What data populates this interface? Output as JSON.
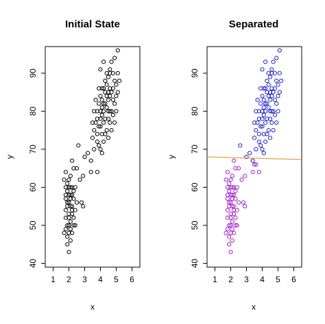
{
  "chart_data": [
    {
      "type": "scatter",
      "title": "Initial State",
      "xlabel": "x",
      "ylabel": "y",
      "xlim": [
        0.5,
        6.5
      ],
      "ylim": [
        39,
        97
      ],
      "xticks": [
        1,
        2,
        3,
        4,
        5,
        6
      ],
      "yticks": [
        40,
        50,
        60,
        70,
        80,
        90
      ],
      "grid": false,
      "series": [
        {
          "color": "#000000",
          "points": [
            [
              1.8,
              54
            ],
            [
              1.9,
              55
            ],
            [
              2.0,
              53
            ],
            [
              1.8,
              57
            ],
            [
              1.9,
              59
            ],
            [
              2.0,
              60
            ],
            [
              2.1,
              58
            ],
            [
              1.7,
              62
            ],
            [
              1.8,
              52
            ],
            [
              1.9,
              50
            ],
            [
              2.0,
              48
            ],
            [
              2.1,
              46
            ],
            [
              1.9,
              45
            ],
            [
              2.0,
              43
            ],
            [
              2.2,
              55
            ],
            [
              2.3,
              57
            ],
            [
              1.7,
              48
            ],
            [
              2.1,
              51
            ],
            [
              2.2,
              53
            ],
            [
              2.3,
              52
            ],
            [
              2.4,
              54
            ],
            [
              2.5,
              56
            ],
            [
              1.8,
              64
            ],
            [
              2.0,
              62
            ],
            [
              2.1,
              63
            ],
            [
              2.3,
              65
            ],
            [
              2.5,
              65
            ],
            [
              2.7,
              62
            ],
            [
              2.9,
              63
            ],
            [
              2.2,
              67
            ],
            [
              2.8,
              56
            ],
            [
              2.9,
              55
            ],
            [
              2.4,
              50
            ],
            [
              2.2,
              48
            ],
            [
              1.8,
              49
            ],
            [
              1.9,
              47
            ],
            [
              2.0,
              52
            ],
            [
              2.1,
              55
            ],
            [
              2.2,
              58
            ],
            [
              1.8,
              60
            ],
            [
              2.0,
              56
            ],
            [
              2.2,
              60
            ],
            [
              2.3,
              59
            ],
            [
              1.9,
              61
            ],
            [
              2.1,
              60
            ],
            [
              2.0,
              58
            ],
            [
              2.1,
              57
            ],
            [
              2.2,
              54
            ],
            [
              2.3,
              50
            ],
            [
              2.1,
              49
            ],
            [
              1.9,
              56
            ],
            [
              1.8,
              58
            ],
            [
              2.0,
              50
            ],
            [
              2.4,
              60
            ],
            [
              3.0,
              68
            ],
            [
              3.2,
              69
            ],
            [
              3.4,
              67
            ],
            [
              3.6,
              70
            ],
            [
              3.8,
              72
            ],
            [
              4.0,
              70
            ],
            [
              4.1,
              69
            ],
            [
              2.6,
              71
            ],
            [
              3.5,
              73
            ],
            [
              3.6,
              75
            ],
            [
              3.7,
              77
            ],
            [
              3.8,
              74
            ],
            [
              3.9,
              76
            ],
            [
              4.0,
              78
            ],
            [
              4.1,
              79
            ],
            [
              4.2,
              80
            ],
            [
              4.3,
              82
            ],
            [
              4.4,
              81
            ],
            [
              4.5,
              83
            ],
            [
              4.6,
              84
            ],
            [
              4.7,
              85
            ],
            [
              4.8,
              86
            ],
            [
              4.9,
              88
            ],
            [
              5.0,
              87
            ],
            [
              5.1,
              90
            ],
            [
              3.8,
              80
            ],
            [
              3.9,
              82
            ],
            [
              4.0,
              84
            ],
            [
              4.1,
              83
            ],
            [
              4.2,
              86
            ],
            [
              4.3,
              88
            ],
            [
              4.4,
              90
            ],
            [
              4.5,
              89
            ],
            [
              4.6,
              91
            ],
            [
              4.7,
              93
            ],
            [
              4.9,
              94
            ],
            [
              5.1,
              96
            ],
            [
              4.2,
              93
            ],
            [
              4.0,
              91
            ],
            [
              3.9,
              86
            ],
            [
              3.7,
              83
            ],
            [
              3.6,
              80
            ],
            [
              3.8,
              78
            ],
            [
              4.0,
              76
            ],
            [
              4.2,
              77
            ],
            [
              4.4,
              75
            ],
            [
              4.5,
              78
            ],
            [
              4.6,
              77
            ],
            [
              4.8,
              79
            ],
            [
              5.0,
              80
            ],
            [
              4.9,
              82
            ],
            [
              4.7,
              80
            ],
            [
              4.5,
              80
            ],
            [
              4.3,
              78
            ],
            [
              4.1,
              81
            ],
            [
              4.4,
              84
            ],
            [
              4.6,
              86
            ],
            [
              4.8,
              83
            ],
            [
              5.0,
              84
            ],
            [
              4.3,
              74
            ],
            [
              4.5,
              73
            ],
            [
              4.7,
              75
            ],
            [
              4.2,
              72
            ],
            [
              4.9,
              77
            ],
            [
              5.1,
              85
            ],
            [
              5.2,
              88
            ],
            [
              4.3,
              85
            ],
            [
              4.4,
              87
            ],
            [
              4.6,
              80
            ],
            [
              4.0,
              80
            ],
            [
              4.2,
              82
            ],
            [
              4.5,
              85
            ],
            [
              4.8,
              90
            ],
            [
              3.9,
              71
            ],
            [
              4.1,
              74
            ],
            [
              3.5,
              77
            ],
            [
              3.4,
              64
            ],
            [
              3.8,
              64
            ],
            [
              4.6,
              90
            ],
            [
              4.1,
              86
            ]
          ]
        }
      ]
    },
    {
      "type": "scatter",
      "title": "Separated",
      "xlabel": "x",
      "ylabel": "y",
      "xlim": [
        0.5,
        6.5
      ],
      "ylim": [
        39,
        97
      ],
      "xticks": [
        1,
        2,
        3,
        4,
        5,
        6
      ],
      "yticks": [
        40,
        50,
        60,
        70,
        80,
        90
      ],
      "grid": false,
      "separator": {
        "x": [
          0.5,
          6.5
        ],
        "y": [
          68.0,
          67.3
        ],
        "color": "#e8a33d"
      },
      "series": [
        {
          "color": "#a020c8",
          "points": [
            [
              1.8,
              54
            ],
            [
              1.9,
              55
            ],
            [
              2.0,
              53
            ],
            [
              1.8,
              57
            ],
            [
              1.9,
              59
            ],
            [
              2.0,
              60
            ],
            [
              2.1,
              58
            ],
            [
              1.7,
              62
            ],
            [
              1.8,
              52
            ],
            [
              1.9,
              50
            ],
            [
              2.0,
              48
            ],
            [
              2.1,
              46
            ],
            [
              1.9,
              45
            ],
            [
              2.0,
              43
            ],
            [
              2.2,
              55
            ],
            [
              2.3,
              57
            ],
            [
              1.7,
              48
            ],
            [
              2.1,
              51
            ],
            [
              2.2,
              53
            ],
            [
              2.3,
              52
            ],
            [
              2.4,
              54
            ],
            [
              2.5,
              56
            ],
            [
              1.8,
              64
            ],
            [
              2.0,
              62
            ],
            [
              2.1,
              63
            ],
            [
              2.3,
              65
            ],
            [
              2.5,
              65
            ],
            [
              2.7,
              62
            ],
            [
              2.9,
              63
            ],
            [
              2.2,
              67
            ],
            [
              2.8,
              56
            ],
            [
              2.9,
              55
            ],
            [
              2.4,
              50
            ],
            [
              2.2,
              48
            ],
            [
              1.8,
              49
            ],
            [
              1.9,
              47
            ],
            [
              2.0,
              52
            ],
            [
              2.1,
              55
            ],
            [
              2.2,
              58
            ],
            [
              1.8,
              60
            ],
            [
              2.0,
              56
            ],
            [
              2.2,
              60
            ],
            [
              2.3,
              59
            ],
            [
              1.9,
              61
            ],
            [
              2.1,
              60
            ],
            [
              2.0,
              58
            ],
            [
              2.1,
              57
            ],
            [
              2.2,
              54
            ],
            [
              2.3,
              50
            ],
            [
              2.1,
              49
            ],
            [
              1.9,
              56
            ],
            [
              1.8,
              58
            ],
            [
              2.0,
              50
            ],
            [
              2.4,
              60
            ],
            [
              3.4,
              64
            ],
            [
              3.8,
              64
            ],
            [
              3.5,
              66
            ],
            [
              3.6,
              66
            ]
          ]
        },
        {
          "color": "#1f1fc8",
          "points": [
            [
              3.0,
              68
            ],
            [
              3.2,
              69
            ],
            [
              3.4,
              67
            ],
            [
              3.6,
              70
            ],
            [
              3.8,
              72
            ],
            [
              4.0,
              70
            ],
            [
              4.1,
              69
            ],
            [
              2.6,
              71
            ],
            [
              3.5,
              73
            ],
            [
              3.6,
              75
            ],
            [
              3.7,
              77
            ],
            [
              3.8,
              74
            ],
            [
              3.9,
              76
            ],
            [
              4.0,
              78
            ],
            [
              4.1,
              79
            ],
            [
              4.2,
              80
            ],
            [
              4.3,
              82
            ],
            [
              4.4,
              81
            ],
            [
              4.5,
              83
            ],
            [
              4.6,
              84
            ],
            [
              4.7,
              85
            ],
            [
              4.8,
              86
            ],
            [
              4.9,
              88
            ],
            [
              5.0,
              87
            ],
            [
              5.1,
              90
            ],
            [
              3.8,
              80
            ],
            [
              3.9,
              82
            ],
            [
              4.0,
              84
            ],
            [
              4.1,
              83
            ],
            [
              4.2,
              86
            ],
            [
              4.3,
              88
            ],
            [
              4.4,
              90
            ],
            [
              4.5,
              89
            ],
            [
              4.6,
              91
            ],
            [
              4.7,
              93
            ],
            [
              4.9,
              94
            ],
            [
              5.1,
              96
            ],
            [
              4.2,
              93
            ],
            [
              4.0,
              91
            ],
            [
              3.9,
              86
            ],
            [
              3.7,
              83
            ],
            [
              3.6,
              80
            ],
            [
              3.8,
              78
            ],
            [
              4.0,
              76
            ],
            [
              4.2,
              77
            ],
            [
              4.4,
              75
            ],
            [
              4.5,
              78
            ],
            [
              4.6,
              77
            ],
            [
              4.8,
              79
            ],
            [
              5.0,
              80
            ],
            [
              4.9,
              82
            ],
            [
              4.7,
              80
            ],
            [
              4.5,
              80
            ],
            [
              4.3,
              78
            ],
            [
              4.1,
              81
            ],
            [
              4.4,
              84
            ],
            [
              4.6,
              86
            ],
            [
              4.8,
              83
            ],
            [
              5.0,
              84
            ],
            [
              4.3,
              74
            ],
            [
              4.5,
              73
            ],
            [
              4.7,
              75
            ],
            [
              4.2,
              72
            ],
            [
              4.9,
              77
            ],
            [
              5.1,
              85
            ],
            [
              5.2,
              88
            ],
            [
              4.3,
              85
            ],
            [
              4.4,
              87
            ],
            [
              4.6,
              80
            ],
            [
              4.0,
              80
            ],
            [
              4.2,
              82
            ],
            [
              4.5,
              85
            ],
            [
              4.8,
              90
            ],
            [
              3.9,
              71
            ],
            [
              4.1,
              74
            ],
            [
              3.5,
              77
            ],
            [
              4.6,
              90
            ],
            [
              4.1,
              86
            ]
          ]
        }
      ]
    }
  ]
}
